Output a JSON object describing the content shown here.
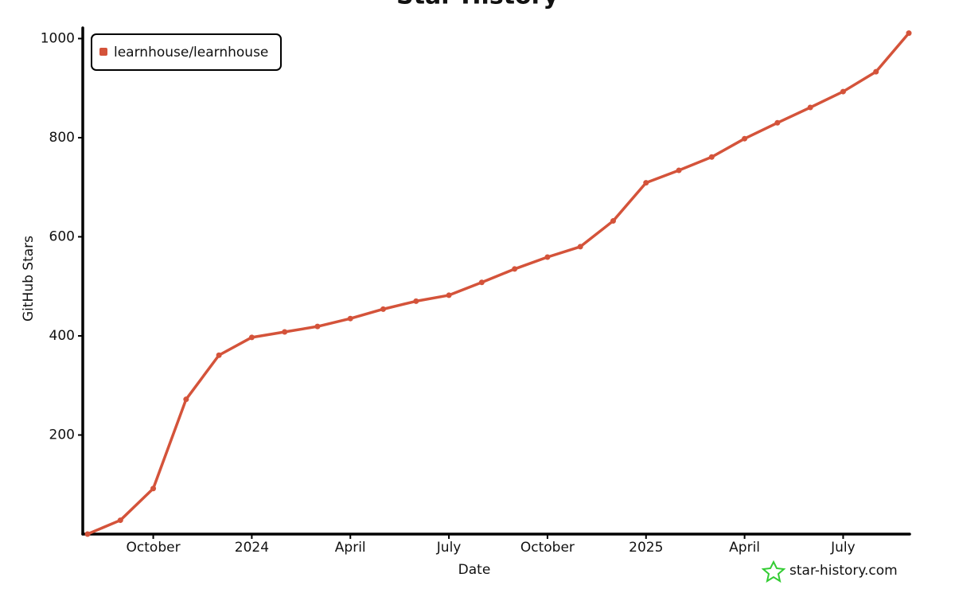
{
  "chart_data": {
    "type": "line",
    "title": "Star History",
    "x_label": "Date",
    "y_label": "GitHub Stars",
    "watermark": "star-history.com",
    "legend": "top-left",
    "x": [
      "2023-08",
      "2023-09",
      "2023-10",
      "2023-11",
      "2023-12",
      "2024-01",
      "2024-02",
      "2024-03",
      "2024-04",
      "2024-05",
      "2024-06",
      "2024-07",
      "2024-08",
      "2024-09",
      "2024-10",
      "2024-11",
      "2024-12",
      "2025-01",
      "2025-02",
      "2025-03",
      "2025-04",
      "2025-05",
      "2025-06",
      "2025-07",
      "2025-08",
      "2025-09"
    ],
    "series": [
      {
        "name": "learnhouse/learnhouse",
        "color": "#d4533a",
        "values": [
          0,
          28,
          92,
          272,
          361,
          397,
          408,
          419,
          435,
          454,
          470,
          482,
          508,
          535,
          559,
          580,
          632,
          709,
          734,
          761,
          798,
          830,
          861,
          893,
          933,
          1011
        ]
      }
    ],
    "xlim": [
      "2023-08",
      "2025-09"
    ],
    "xticks": [
      {
        "value": "2023-10",
        "label": "October"
      },
      {
        "value": "2024-01",
        "label": "2024"
      },
      {
        "value": "2024-04",
        "label": "April"
      },
      {
        "value": "2024-07",
        "label": "July"
      },
      {
        "value": "2024-10",
        "label": "October"
      },
      {
        "value": "2025-01",
        "label": "2025"
      },
      {
        "value": "2025-04",
        "label": "April"
      },
      {
        "value": "2025-07",
        "label": "July"
      }
    ],
    "ylim": [
      0,
      1020
    ],
    "yticks": [
      200,
      400,
      600,
      800,
      1000
    ]
  }
}
